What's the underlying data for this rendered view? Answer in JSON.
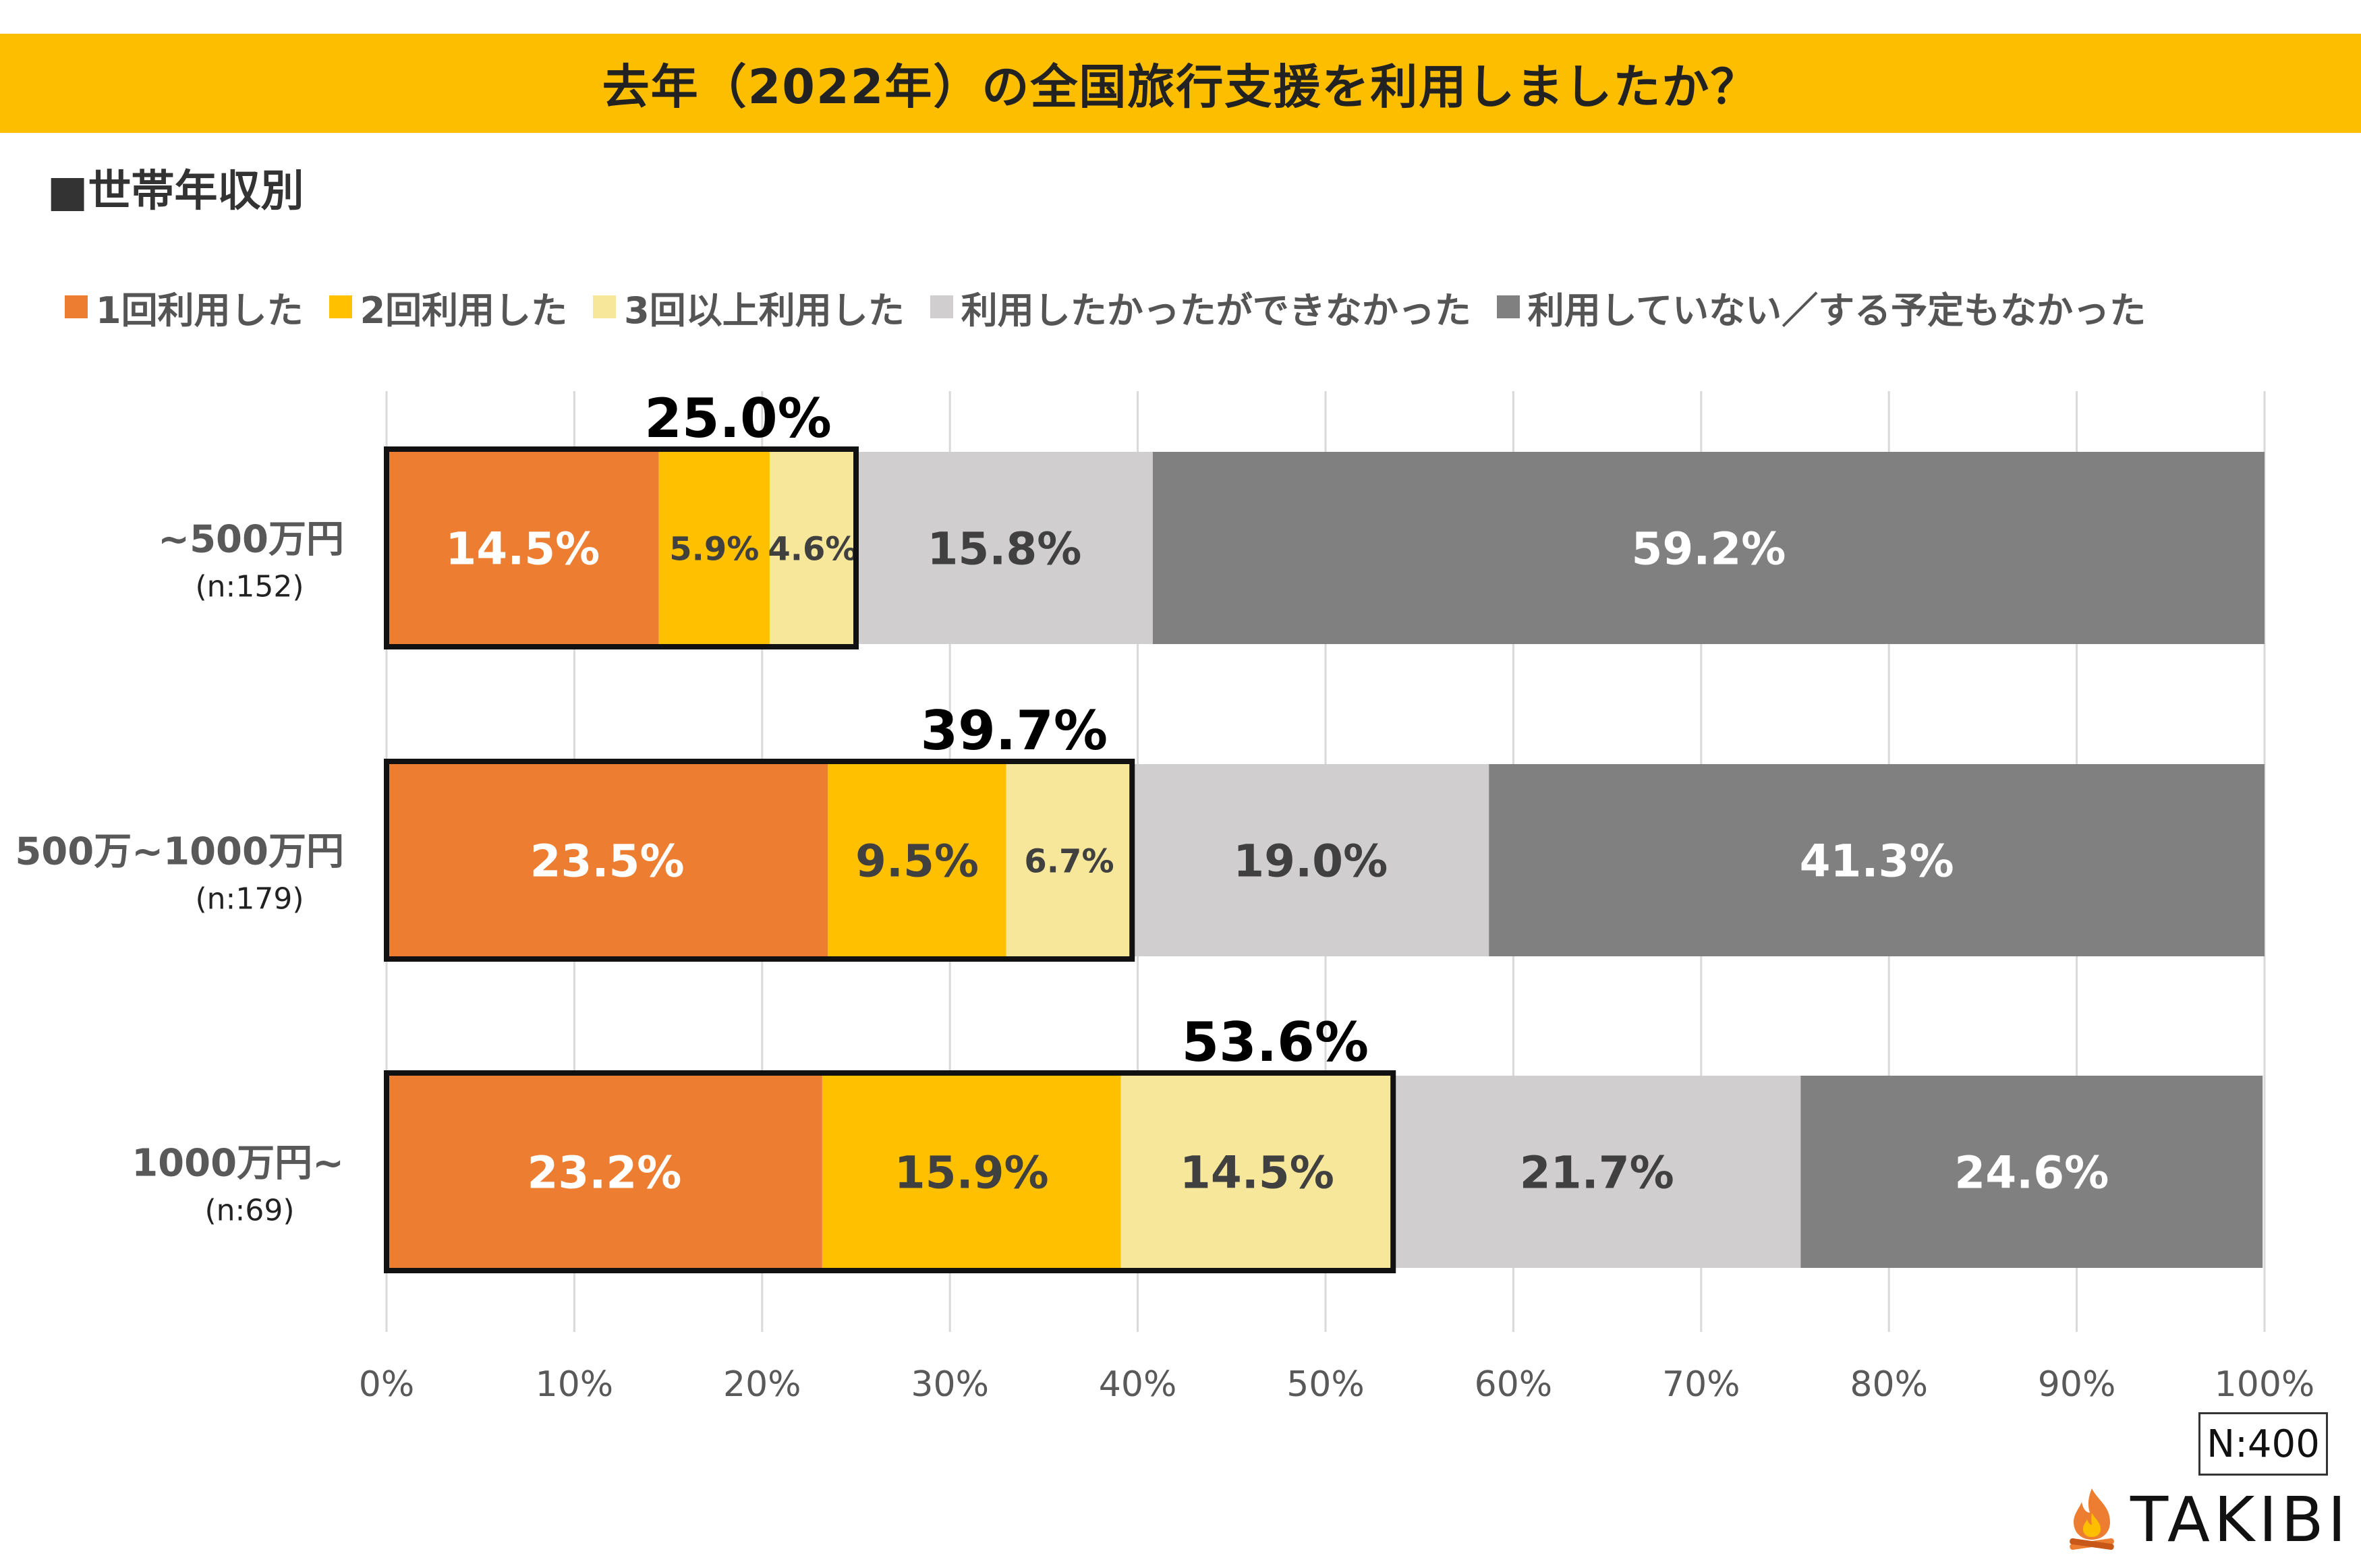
{
  "title": "去年（2022年）の全国旅行支援を利用しましたか？",
  "section_label": "■世帯年収別",
  "sample_size": "N:400",
  "brand": "TAKIBI",
  "colors": {
    "title_bar": "#FDBE00",
    "once": "#ED7D31",
    "twice": "#FFC000",
    "three_plus": "#F6E79A",
    "wanted_but_couldnt": "#D0CECE",
    "not_used": "#808080",
    "highlight_border": "#111111"
  },
  "chart_data": {
    "type": "bar",
    "orientation": "horizontal",
    "stacked": true,
    "percent_stacked": true,
    "xlim": [
      0,
      100
    ],
    "x_ticks": [
      "0%",
      "10%",
      "20%",
      "30%",
      "40%",
      "50%",
      "60%",
      "70%",
      "80%",
      "90%",
      "100%"
    ],
    "grid": "vertical",
    "legend_position": "top",
    "categories": [
      {
        "label": "~500万円",
        "n": "(n:152)"
      },
      {
        "label": "500万~1000万円",
        "n": "(n:179)"
      },
      {
        "label": "1000万円~",
        "n": "(n:69)"
      }
    ],
    "series": [
      {
        "name": "1回利用した",
        "color_key": "once",
        "values": [
          14.5,
          23.5,
          23.2
        ],
        "labels": [
          "14.5%",
          "23.5%",
          "23.2%"
        ],
        "label_color": "#ffffff"
      },
      {
        "name": "2回利用した",
        "color_key": "twice",
        "values": [
          5.9,
          9.5,
          15.9
        ],
        "labels": [
          "5.9%",
          "9.5%",
          "15.9%"
        ],
        "label_color": "#404040"
      },
      {
        "name": "3回以上利用した",
        "color_key": "three_plus",
        "values": [
          4.6,
          6.7,
          14.5
        ],
        "labels": [
          "4.6%",
          "6.7%",
          "14.5%"
        ],
        "label_color": "#404040"
      },
      {
        "name": "利用したかったができなかった",
        "color_key": "wanted_but_couldnt",
        "values": [
          15.8,
          19.0,
          21.7
        ],
        "labels": [
          "15.8%",
          "19.0%",
          "21.7%"
        ],
        "label_color": "#404040"
      },
      {
        "name": "利用していない／する予定もなかった",
        "color_key": "not_used",
        "values": [
          59.2,
          41.3,
          24.6
        ],
        "labels": [
          "59.2%",
          "41.3%",
          "24.6%"
        ],
        "label_color": "#ffffff"
      }
    ],
    "highlight_totals": {
      "values": [
        25.0,
        39.7,
        53.6
      ],
      "labels": [
        "25.0%",
        "39.7%",
        "53.6%"
      ]
    }
  }
}
